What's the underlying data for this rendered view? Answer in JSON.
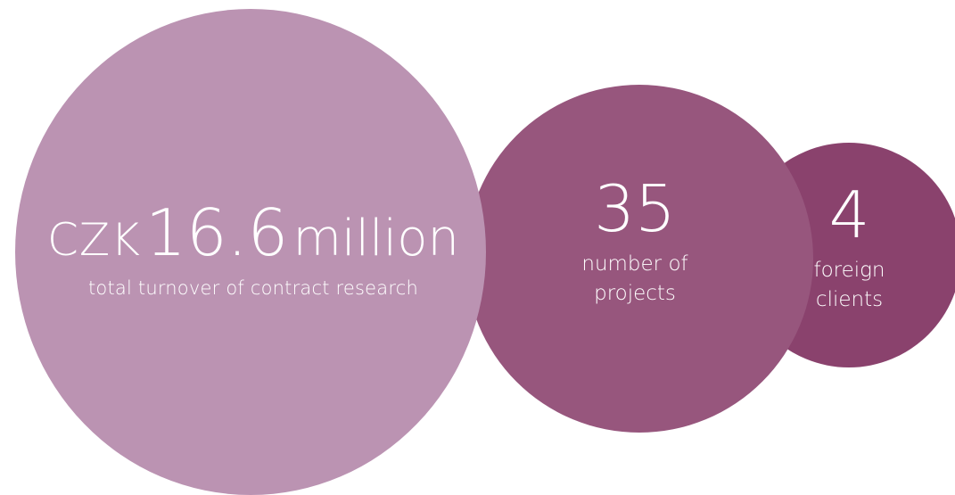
{
  "colors": {
    "background": "#ffffff",
    "text": "#ffffff",
    "turnover_circle": "#bb93b2",
    "projects_circle": "#97567d",
    "clients_circle": "#8a426d"
  },
  "turnover": {
    "prefix": "CZK",
    "value": "16.6",
    "unit": "million",
    "caption": "total turnover of contract research"
  },
  "projects": {
    "value": "35",
    "caption_line1": "number of",
    "caption_line2": "projects"
  },
  "clients": {
    "value": "4",
    "caption_line1": "foreign",
    "caption_line2": "clients"
  }
}
